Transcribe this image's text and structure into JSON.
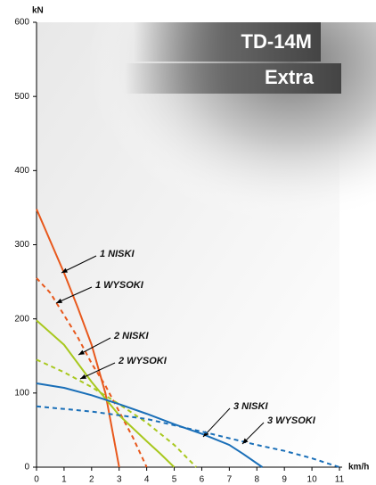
{
  "chart_data": {
    "type": "line",
    "brand_title": "TD-14M",
    "brand_subtitle": "Extra",
    "y_label": "kN",
    "x_label": "km/h",
    "xlim": [
      0,
      11
    ],
    "xticks": [
      0,
      1,
      2,
      3,
      4,
      5,
      6,
      7,
      8,
      9,
      10,
      11
    ],
    "ylim": [
      0,
      600
    ],
    "yticks": [
      0,
      100,
      200,
      300,
      400,
      500,
      600
    ],
    "series": [
      {
        "name": "1 NISKI",
        "color": "#e8581c",
        "style": "solid",
        "x": [
          0,
          0.5,
          1,
          1.5,
          2,
          2.5,
          2.8,
          3.0
        ],
        "values": [
          348,
          305,
          262,
          215,
          165,
          100,
          40,
          0
        ]
      },
      {
        "name": "1 WYSOKI",
        "color": "#e8581c",
        "style": "dashed",
        "x": [
          0,
          0.5,
          1,
          1.5,
          2,
          2.5,
          3,
          3.5,
          4
        ],
        "values": [
          255,
          235,
          205,
          175,
          140,
          110,
          75,
          40,
          0
        ]
      },
      {
        "name": "2 NISKI",
        "color": "#a8c81e",
        "style": "solid",
        "x": [
          0,
          1,
          2,
          3,
          4,
          4.5,
          5
        ],
        "values": [
          198,
          165,
          115,
          70,
          35,
          18,
          0
        ]
      },
      {
        "name": "2 WYSOKI",
        "color": "#a8c81e",
        "style": "dashed",
        "x": [
          0,
          1,
          2,
          3,
          4,
          5,
          5.8
        ],
        "values": [
          145,
          128,
          108,
          85,
          60,
          30,
          0
        ]
      },
      {
        "name": "3 NISKI",
        "color": "#1a6fb8",
        "style": "solid",
        "x": [
          0,
          1,
          2,
          3,
          4,
          5,
          6,
          7,
          7.5,
          8.2
        ],
        "values": [
          113,
          107,
          97,
          85,
          72,
          58,
          45,
          30,
          18,
          0
        ]
      },
      {
        "name": "3 WYSOKI",
        "color": "#1a6fb8",
        "style": "dashed",
        "x": [
          0,
          2,
          4,
          6,
          8,
          9,
          10,
          11
        ],
        "values": [
          82,
          75,
          65,
          48,
          30,
          22,
          12,
          0
        ]
      }
    ]
  }
}
